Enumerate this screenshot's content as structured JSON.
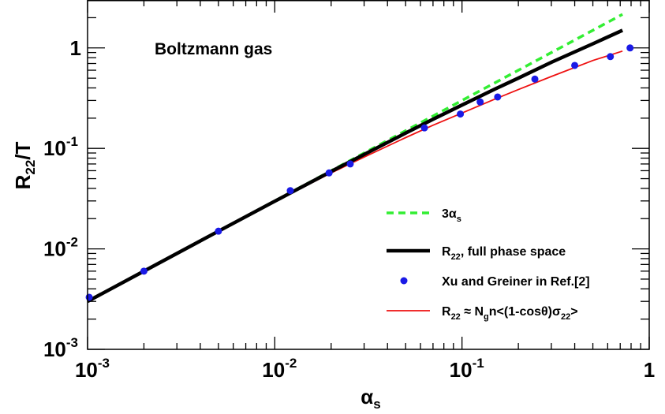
{
  "chart_data": {
    "type": "line",
    "x_scale": "log",
    "y_scale": "log",
    "xlim": [
      0.001,
      1
    ],
    "ylim": [
      0.001,
      3
    ],
    "annotation": "Boltzmann gas",
    "xlabel": {
      "main": "α",
      "sub": "s"
    },
    "ylabel": {
      "main": "R",
      "sub": "22",
      "tail": "/T"
    },
    "x_ticks": [
      {
        "value": 0.001,
        "base": "10",
        "exp": "-3"
      },
      {
        "value": 0.01,
        "base": "10",
        "exp": "-2"
      },
      {
        "value": 0.1,
        "base": "10",
        "exp": "-1"
      },
      {
        "value": 1,
        "base": "1",
        "exp": ""
      }
    ],
    "y_ticks": [
      {
        "value": 0.001,
        "base": "10",
        "exp": "-3"
      },
      {
        "value": 0.01,
        "base": "10",
        "exp": "-2"
      },
      {
        "value": 0.1,
        "base": "10",
        "exp": "-1"
      },
      {
        "value": 1,
        "base": "1",
        "exp": ""
      }
    ],
    "series": [
      {
        "name": "3αs",
        "legend": [
          {
            "t": "3α"
          },
          {
            "t": "s",
            "sub": true
          }
        ],
        "kind": "line",
        "color": "#33ee33",
        "dash": true,
        "x": [
          0.001,
          0.002,
          0.005,
          0.01,
          0.02,
          0.05,
          0.1,
          0.2,
          0.5,
          0.72
        ],
        "y": [
          0.003,
          0.006,
          0.015,
          0.03,
          0.06,
          0.15,
          0.3,
          0.6,
          1.5,
          2.16
        ]
      },
      {
        "name": "R22, full phase space",
        "legend": [
          {
            "t": "R"
          },
          {
            "t": "22",
            "sub": true
          },
          {
            "t": ", full phase space"
          }
        ],
        "kind": "line",
        "color": "#000000",
        "x": [
          0.001,
          0.002,
          0.005,
          0.01,
          0.02,
          0.03,
          0.05,
          0.07,
          0.1,
          0.15,
          0.2,
          0.3,
          0.5,
          0.72
        ],
        "y": [
          0.003,
          0.006,
          0.015,
          0.0298,
          0.059,
          0.087,
          0.142,
          0.195,
          0.27,
          0.39,
          0.5,
          0.72,
          1.1,
          1.5
        ]
      },
      {
        "name": "Xu and Greiner in Ref.[2]",
        "legend": [
          {
            "t": "Xu and Greiner in Ref.[2]"
          }
        ],
        "kind": "scatter",
        "color": "#1a1ae6",
        "x": [
          0.00102,
          0.002,
          0.005,
          0.0121,
          0.0195,
          0.0253,
          0.063,
          0.098,
          0.125,
          0.155,
          0.245,
          0.4,
          0.62,
          0.79
        ],
        "y": [
          0.0033,
          0.006,
          0.015,
          0.038,
          0.057,
          0.07,
          0.16,
          0.22,
          0.29,
          0.325,
          0.49,
          0.67,
          0.82,
          1.0
        ]
      },
      {
        "name": "R22 ≈ Ngn<(1-cosθ)σ22>",
        "legend": [
          {
            "t": "R"
          },
          {
            "t": "22",
            "sub": true
          },
          {
            "t": " ≈ N"
          },
          {
            "t": "g",
            "sub": true
          },
          {
            "t": "n<(1-cosθ)σ"
          },
          {
            "t": "22",
            "sub": true
          },
          {
            "t": ">"
          }
        ],
        "kind": "line",
        "color": "#ee1111",
        "x": [
          0.001,
          0.002,
          0.005,
          0.01,
          0.02,
          0.03,
          0.05,
          0.07,
          0.1,
          0.15,
          0.2,
          0.3,
          0.5,
          0.72
        ],
        "y": [
          0.003,
          0.006,
          0.015,
          0.0296,
          0.057,
          0.082,
          0.128,
          0.17,
          0.225,
          0.31,
          0.385,
          0.52,
          0.75,
          0.93
        ]
      }
    ]
  }
}
